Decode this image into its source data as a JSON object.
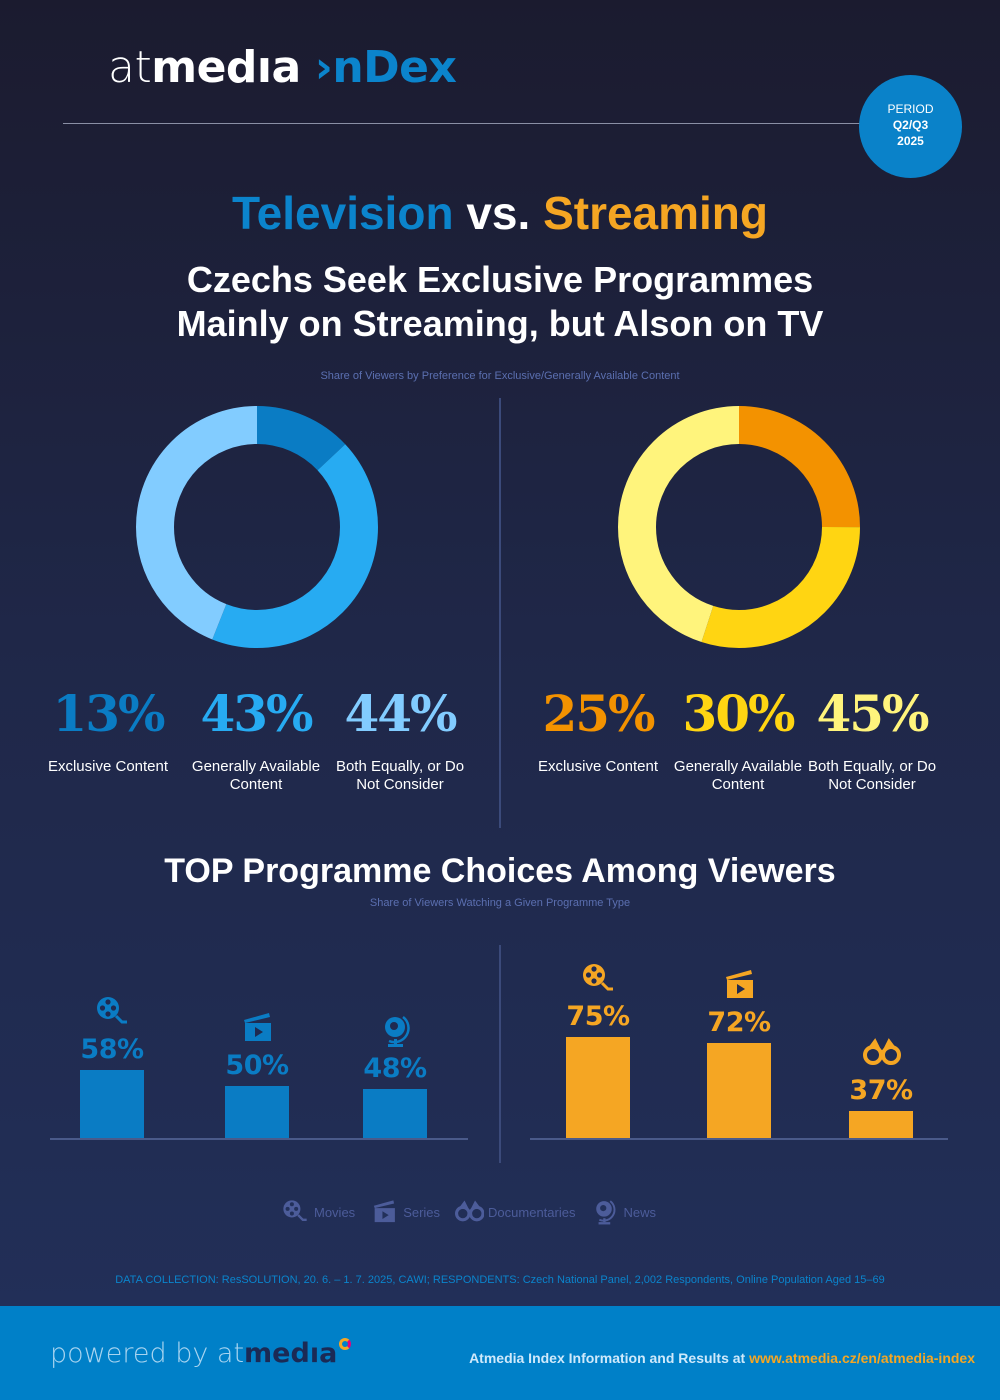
{
  "logo": {
    "part1": "at",
    "part2": "medıa",
    "part3": "›nDex"
  },
  "period": {
    "label": "PERIOD",
    "quarter": "Q2/Q3",
    "year": "2025"
  },
  "title": {
    "tv": "Television",
    "vs": " vs. ",
    "streaming": "Streaming"
  },
  "subtitle": {
    "line1": "Czechs Seek Exclusive Programmes",
    "line2": "Mainly on Streaming, but Alson on TV"
  },
  "donut_caption": "Share of Viewers by Preference for Exclusive/Generally Available Content",
  "chart_data": [
    {
      "type": "pie",
      "name": "Television",
      "categories": [
        "Exclusive Content",
        "Generally Available Content",
        "Both Equally, or Do Not Consider"
      ],
      "values": [
        13,
        43,
        44
      ],
      "labels": [
        "13%",
        "43%",
        "44%"
      ],
      "colors": [
        "#0a7cc4",
        "#27abf2",
        "#82ccff"
      ]
    },
    {
      "type": "pie",
      "name": "Streaming",
      "categories": [
        "Exclusive Content",
        "Generally Available Content",
        "Both Equally, or Do Not Consider"
      ],
      "values": [
        25,
        30,
        45
      ],
      "labels": [
        "25%",
        "30%",
        "45%"
      ],
      "colors": [
        "#f39200",
        "#ffd512",
        "#fff47c"
      ]
    },
    {
      "type": "bar",
      "name": "Television",
      "categories": [
        "Movies",
        "Series",
        "News"
      ],
      "icons": [
        "film-reel-icon",
        "clapperboard-icon",
        "globe-icon"
      ],
      "values": [
        58,
        50,
        48
      ],
      "labels": [
        "58%",
        "50%",
        "48%"
      ],
      "color": "#0a7cc4"
    },
    {
      "type": "bar",
      "name": "Streaming",
      "categories": [
        "Movies",
        "Series",
        "Documentaries"
      ],
      "icons": [
        "film-reel-icon",
        "clapperboard-icon",
        "binoculars-icon"
      ],
      "values": [
        75,
        72,
        37
      ],
      "labels": [
        "75%",
        "72%",
        "37%"
      ],
      "color": "#f5a623"
    }
  ],
  "top": {
    "title": "TOP Programme Choices Among Viewers",
    "caption": "Share of Viewers Watching a Given Programme Type"
  },
  "legend": [
    {
      "icon": "film-reel-icon",
      "label": "Movies"
    },
    {
      "icon": "clapperboard-icon",
      "label": "Series"
    },
    {
      "icon": "binoculars-icon",
      "label": "Documentaries"
    },
    {
      "icon": "globe-icon",
      "label": "News"
    }
  ],
  "note": "DATA COLLECTION: ResSOLUTION, 20. 6. – 1. 7. 2025, CAWI; RESPONDENTS: Czech National Panel, 2,002 Respondents, Online Population Aged 15–69",
  "footer": {
    "powered": "powered by ",
    "brand_at": "at",
    "brand_media": "medıa",
    "info": "Atmedia Index Information and Results at ",
    "url": "www.atmedia.cz/en/atmedia-index"
  }
}
